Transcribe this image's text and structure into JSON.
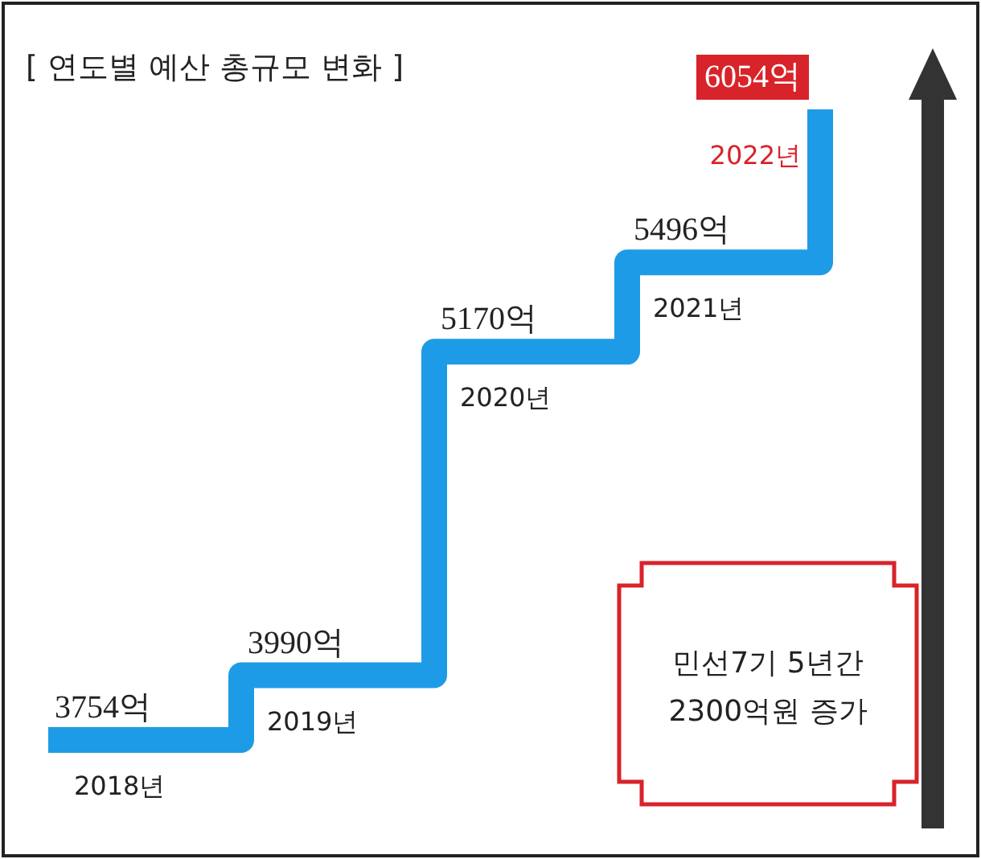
{
  "chart_data": {
    "type": "step",
    "title": "[ 연도별 예산 총규모 변화 ]",
    "categories": [
      "2018년",
      "2019년",
      "2020년",
      "2021년",
      "2022년"
    ],
    "values": [
      3754,
      3990,
      5170,
      5496,
      6054
    ],
    "value_labels": [
      "3754억",
      "3990억",
      "5170억",
      "5496억",
      "6054억"
    ],
    "color": "#1e9be6",
    "annotations": [
      "민선7기 5년간 2300억원 증가"
    ]
  }
}
